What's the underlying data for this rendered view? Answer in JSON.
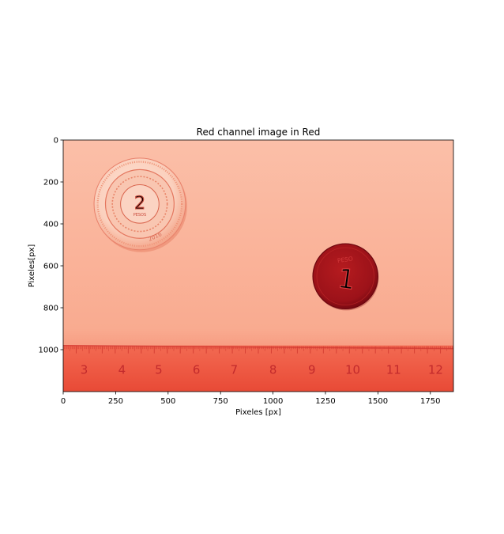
{
  "chart_data": {
    "type": "image",
    "title": "Red channel image in Red",
    "xlabel": "Pixeles [px]",
    "ylabel": "Pixeles[px]",
    "xlim": [
      0,
      1860
    ],
    "ylim": [
      1200,
      0
    ],
    "x_ticks": [
      0,
      250,
      500,
      750,
      1000,
      1250,
      1500,
      1750
    ],
    "y_ticks": [
      0,
      200,
      400,
      600,
      800,
      1000
    ],
    "colormap": "Reds",
    "image_content": {
      "coins": [
        {
          "cx": 365,
          "cy": 305,
          "r": 218,
          "denomination": "2",
          "label": "PESOS",
          "year": "2016",
          "tone": "light"
        },
        {
          "cx": 1345,
          "cy": 650,
          "r": 155,
          "denomination": "1",
          "label": "PESO",
          "tone": "dark"
        }
      ],
      "ruler": {
        "top": 980,
        "numbers": [
          {
            "label": "3",
            "x": 100
          },
          {
            "label": "4",
            "x": 280
          },
          {
            "label": "5",
            "x": 455
          },
          {
            "label": "6",
            "x": 635
          },
          {
            "label": "7",
            "x": 815
          },
          {
            "label": "8",
            "x": 1000
          },
          {
            "label": "9",
            "x": 1185
          },
          {
            "label": "10",
            "x": 1380
          },
          {
            "label": "11",
            "x": 1575
          },
          {
            "label": "12",
            "x": 1775
          }
        ]
      }
    }
  }
}
